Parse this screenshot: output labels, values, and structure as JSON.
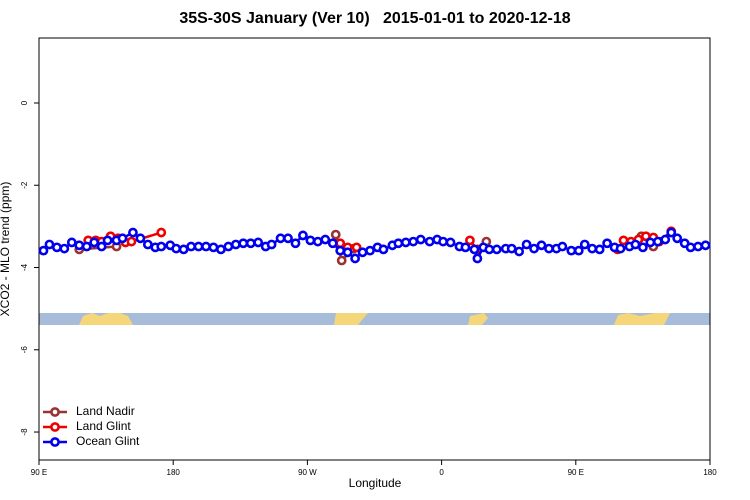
{
  "chart_data": {
    "type": "line",
    "title": "35S-30S January (Ver 10)   2015-01-01 to 2020-12-18",
    "x_label": "Longitude",
    "y_label": "XCO2 - MLO trend (ppm)",
    "xlim": [
      90,
      540
    ],
    "ylim": [
      -8.68,
      1.58
    ],
    "xticks": [
      {
        "value": 90,
        "label": "90 E"
      },
      {
        "value": 180,
        "label": "180"
      },
      {
        "value": 270,
        "label": "90 W"
      },
      {
        "value": 360,
        "label": "0"
      },
      {
        "value": 450,
        "label": "90 E"
      },
      {
        "value": 540,
        "label": "180"
      }
    ],
    "yticks": [
      0,
      -2,
      -4,
      -6,
      -8
    ],
    "legend_position": "bottom-left",
    "series": [
      {
        "name": "Land Nadir",
        "color": "#993333",
        "x": [
          117,
          142,
          null,
          289,
          293,
          301,
          null,
          390,
          null,
          494,
          502
        ],
        "values": [
          -3.56,
          -3.49,
          null,
          -3.2,
          -3.83,
          -3.54,
          null,
          -3.37,
          null,
          -3.24,
          -3.49
        ]
      },
      {
        "name": "Land Glint",
        "color": "#ee0000",
        "x": [
          123,
          128,
          132,
          138,
          143,
          148,
          152,
          172,
          null,
          292,
          297,
          303,
          null,
          379,
          384,
          null,
          478,
          482,
          487,
          492,
          497,
          502,
          506,
          514
        ],
        "values": [
          -3.34,
          -3.34,
          -3.37,
          -3.24,
          -3.29,
          -3.39,
          -3.37,
          -3.15,
          null,
          -3.41,
          -3.51,
          -3.51,
          null,
          -3.34,
          -3.56,
          null,
          -3.56,
          -3.34,
          -3.37,
          -3.32,
          -3.24,
          -3.27,
          -3.37,
          -3.12
        ]
      },
      {
        "name": "Ocean Glint",
        "color": "#0000ee",
        "x": [
          93,
          97,
          102,
          107,
          112,
          117,
          122,
          127,
          132,
          136,
          142,
          146,
          153,
          158,
          163,
          168,
          172,
          178,
          182,
          187,
          192,
          197,
          202,
          207,
          212,
          217,
          222,
          227,
          232,
          237,
          242,
          246,
          252,
          257,
          262,
          267,
          272,
          277,
          282,
          287,
          292,
          297,
          302,
          307,
          312,
          317,
          321,
          327,
          331,
          336,
          341,
          346,
          352,
          357,
          361,
          366,
          372,
          376,
          382,
          384,
          388,
          392,
          397,
          403,
          407,
          412,
          417,
          422,
          427,
          432,
          437,
          441,
          447,
          452,
          456,
          461,
          466,
          471,
          476,
          480,
          486,
          490,
          495,
          500,
          505,
          510,
          514,
          518,
          523,
          527,
          532,
          537
        ],
        "values": [
          -3.59,
          -3.44,
          -3.51,
          -3.54,
          -3.39,
          -3.46,
          -3.49,
          -3.39,
          -3.49,
          -3.34,
          -3.34,
          -3.29,
          -3.15,
          -3.29,
          -3.44,
          -3.51,
          -3.49,
          -3.46,
          -3.54,
          -3.56,
          -3.49,
          -3.49,
          -3.49,
          -3.51,
          -3.56,
          -3.49,
          -3.44,
          -3.41,
          -3.41,
          -3.39,
          -3.49,
          -3.44,
          -3.29,
          -3.29,
          -3.41,
          -3.22,
          -3.34,
          -3.37,
          -3.32,
          -3.41,
          -3.59,
          -3.63,
          -3.78,
          -3.63,
          -3.59,
          -3.51,
          -3.56,
          -3.46,
          -3.41,
          -3.39,
          -3.37,
          -3.32,
          -3.37,
          -3.32,
          -3.37,
          -3.39,
          -3.49,
          -3.51,
          -3.56,
          -3.78,
          -3.51,
          -3.56,
          -3.56,
          -3.54,
          -3.54,
          -3.61,
          -3.44,
          -3.54,
          -3.46,
          -3.54,
          -3.54,
          -3.49,
          -3.59,
          -3.59,
          -3.44,
          -3.54,
          -3.56,
          -3.41,
          -3.51,
          -3.54,
          -3.49,
          -3.44,
          -3.51,
          -3.39,
          -3.37,
          -3.32,
          -3.15,
          -3.29,
          -3.41,
          -3.51,
          -3.49,
          -3.46
        ]
      }
    ]
  }
}
